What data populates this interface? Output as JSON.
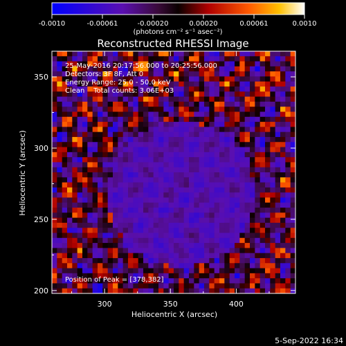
{
  "chart_data": {
    "type": "heatmap",
    "title": "Reconstructed RHESSI Image",
    "xlabel": "Heliocentric X (arcsec)",
    "ylabel": "Heliocentric Y (arcsec)",
    "xlim": [
      260,
      445
    ],
    "ylim": [
      198,
      368
    ],
    "x_ticks": [
      300,
      350,
      400
    ],
    "y_ticks": [
      200,
      250,
      300,
      350
    ],
    "colorbar": {
      "range": [
        -0.001,
        0.001
      ],
      "ticks": [
        "-0.0010",
        "-0.00061",
        "-0.00020",
        "0.00020",
        "0.00061",
        "0.0010"
      ],
      "unit_label": "(photons cm⁻² s⁻¹ asec⁻²)",
      "colormap": "blue-purple-red-orange-yellow-white"
    },
    "annotations": [
      "25-May-2016 20:17:56.000 to 20:25:56.000",
      "Detectors: 3F 8F, Att 0",
      "Energy Range: 25.0 - 50.0 keV",
      "Clean    Total counts: 3.06E+03"
    ],
    "peak_label": "Position of Peak = [378,382]",
    "grid": false
  },
  "footer": {
    "timestamp": "5-Sep-2022 16:34"
  }
}
